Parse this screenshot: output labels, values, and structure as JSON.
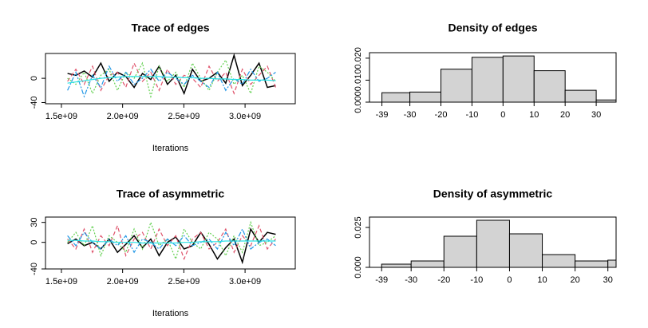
{
  "chart_data": [
    {
      "type": "line",
      "title": "Trace of edges",
      "xlabel": "Iterations",
      "x": [
        1550000000,
        1618000000,
        1686000000,
        1754000000,
        1822000000,
        1890000000,
        1958000000,
        2026000000,
        2094000000,
        2162000000,
        2230000000,
        2298000000,
        2366000000,
        2434000000,
        2502000000,
        2570000000,
        2638000000,
        2706000000,
        2774000000,
        2842000000,
        2910000000,
        2978000000,
        3046000000,
        3114000000,
        3182000000,
        3250000000
      ],
      "series": [
        {
          "color": "#000000",
          "dash": "none",
          "values": [
            8,
            5,
            12,
            2,
            25,
            -5,
            10,
            3,
            -15,
            8,
            -2,
            20,
            -10,
            5,
            -25,
            15,
            -5,
            0,
            10,
            -8,
            38,
            -12,
            5,
            25,
            -15,
            -12
          ]
        },
        {
          "color": "#df536b",
          "dash": "5,3",
          "values": [
            -5,
            15,
            -10,
            20,
            -20,
            5,
            10,
            -15,
            25,
            -5,
            10,
            -20,
            15,
            -10,
            5,
            0,
            -15,
            20,
            -5,
            10,
            -25,
            15,
            -10,
            5,
            20,
            -15
          ]
        },
        {
          "color": "#61d04f",
          "dash": "2,2",
          "values": [
            0,
            -10,
            10,
            -25,
            5,
            15,
            -20,
            10,
            0,
            25,
            -30,
            20,
            -5,
            10,
            -15,
            25,
            0,
            -20,
            10,
            30,
            -10,
            5,
            -25,
            20,
            10,
            -5
          ]
        },
        {
          "color": "#2297e6",
          "dash": "6,2,2,2",
          "values": [
            -20,
            10,
            -30,
            5,
            -15,
            20,
            -5,
            10,
            -10,
            0,
            15,
            -5,
            10,
            0,
            -10,
            5,
            -5,
            -15,
            10,
            -20,
            0,
            -10,
            15,
            -5,
            0,
            10
          ]
        },
        {
          "color": "#28e2e5",
          "dash": "none",
          "values": [
            -8,
            -6,
            -4,
            -2,
            0,
            1,
            2,
            3,
            3,
            3,
            3,
            3,
            2,
            2,
            1,
            1,
            0,
            0,
            -1,
            -1,
            -2,
            -2,
            -3,
            -3,
            -3,
            -4
          ]
        }
      ],
      "xlim": [
        1370000000,
        3410000000
      ],
      "xticks": [
        {
          "value": 1500000000,
          "label": "1.5e+09"
        },
        {
          "value": 2000000000,
          "label": "2.0e+09"
        },
        {
          "value": 2500000000,
          "label": "2.5e+09"
        },
        {
          "value": 3000000000,
          "label": "3.0e+09"
        }
      ],
      "ylim": [
        -42,
        41
      ],
      "yticks": [
        -40,
        0
      ]
    },
    {
      "type": "histogram",
      "title": "Density of edges",
      "bins": [
        -39,
        -30,
        -20,
        -10,
        0,
        10,
        20,
        30,
        40
      ],
      "values": [
        0.0043,
        0.0046,
        0.015,
        0.0204,
        0.021,
        0.0143,
        0.0054,
        0.001
      ],
      "color": "#d3d3d3",
      "xlim": [
        -43,
        36.4
      ],
      "xticks": [
        -39,
        -30,
        -20,
        -10,
        0,
        10,
        20,
        30
      ],
      "ylim": [
        0,
        0.0225
      ],
      "yticks": [
        {
          "value": 0,
          "label": "0.000"
        },
        {
          "value": 0.01,
          "label": "0.010"
        },
        {
          "value": 0.02,
          "label": "0.020"
        }
      ]
    },
    {
      "type": "line",
      "title": "Trace of asymmetric",
      "xlabel": "Iterations",
      "x": [
        1550000000,
        1618000000,
        1686000000,
        1754000000,
        1822000000,
        1890000000,
        1958000000,
        2026000000,
        2094000000,
        2162000000,
        2230000000,
        2298000000,
        2366000000,
        2434000000,
        2502000000,
        2570000000,
        2638000000,
        2706000000,
        2774000000,
        2842000000,
        2910000000,
        2978000000,
        3046000000,
        3114000000,
        3182000000,
        3250000000
      ],
      "series": [
        {
          "color": "#000000",
          "dash": "none",
          "values": [
            -2,
            5,
            -5,
            0,
            -10,
            5,
            -15,
            -3,
            10,
            -8,
            5,
            -20,
            0,
            8,
            -10,
            -5,
            15,
            -3,
            -25,
            -8,
            5,
            -30,
            20,
            0,
            15,
            12
          ]
        },
        {
          "color": "#df536b",
          "dash": "5,3",
          "values": [
            5,
            -10,
            20,
            -15,
            10,
            -5,
            25,
            -20,
            5,
            15,
            -10,
            20,
            -5,
            10,
            -25,
            5,
            15,
            -10,
            0,
            20,
            -15,
            10,
            -5,
            25,
            -10,
            5
          ]
        },
        {
          "color": "#61d04f",
          "dash": "2,2",
          "values": [
            0,
            15,
            -5,
            25,
            -20,
            10,
            0,
            -15,
            20,
            -10,
            30,
            -5,
            5,
            -25,
            20,
            0,
            -10,
            15,
            5,
            -20,
            10,
            -15,
            30,
            -5,
            0,
            10
          ]
        },
        {
          "color": "#2297e6",
          "dash": "6,2,2,2",
          "values": [
            10,
            -5,
            15,
            0,
            -10,
            5,
            -5,
            10,
            -15,
            5,
            0,
            -10,
            5,
            -5,
            10,
            -5,
            0,
            5,
            -10,
            15,
            -5,
            20,
            -10,
            0,
            5,
            -5
          ]
        },
        {
          "color": "#28e2e5",
          "dash": "none",
          "values": [
            3,
            3,
            2,
            2,
            1,
            1,
            0,
            0,
            0,
            -1,
            -1,
            -1,
            -1,
            -1,
            0,
            0,
            1,
            1,
            1,
            2,
            2,
            2,
            2,
            2,
            2,
            2
          ]
        }
      ],
      "xlim": [
        1370000000,
        3410000000
      ],
      "xticks": [
        {
          "value": 1500000000,
          "label": "1.5e+09"
        },
        {
          "value": 2000000000,
          "label": "2.0e+09"
        },
        {
          "value": 2500000000,
          "label": "2.5e+09"
        },
        {
          "value": 3000000000,
          "label": "3.0e+09"
        }
      ],
      "ylim": [
        -40,
        38
      ],
      "yticks": [
        -40,
        0,
        30
      ]
    },
    {
      "type": "histogram",
      "title": "Density of asymmetric",
      "bins": [
        -39,
        -30,
        -20,
        -10,
        0,
        10,
        20,
        30,
        40
      ],
      "values": [
        0.002,
        0.004,
        0.0195,
        0.0295,
        0.021,
        0.008,
        0.004,
        0.0045
      ],
      "color": "#d3d3d3",
      "xlim": [
        -42.7,
        32.5
      ],
      "xticks": [
        -39,
        -30,
        -20,
        -10,
        0,
        10,
        20,
        30
      ],
      "ylim": [
        0,
        0.0315
      ],
      "yticks": [
        {
          "value": 0,
          "label": "0.000"
        },
        {
          "value": 0.025,
          "label": "0.025"
        }
      ]
    }
  ]
}
